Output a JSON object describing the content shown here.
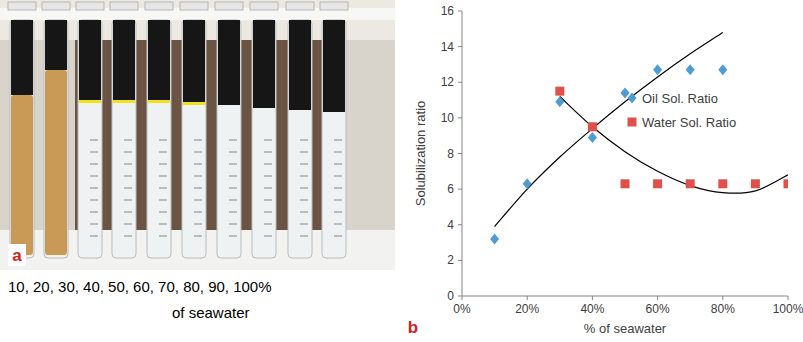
{
  "photo_panel": {
    "label": "a",
    "caption": [
      "10, 20, 30, 40, 50, 60, 70, 80, 90, 100%",
      "of seawater"
    ]
  },
  "chart_data": {
    "type": "scatter",
    "annotations": [
      "b"
    ],
    "x_label": "% of seawater",
    "y_label": "Solubilization ratio",
    "xlim": [
      0,
      100
    ],
    "xticks": [
      {
        "value": 0,
        "label": "0%"
      },
      {
        "value": 20,
        "label": "20%"
      },
      {
        "value": 40,
        "label": "40%"
      },
      {
        "value": 60,
        "label": "60%"
      },
      {
        "value": 80,
        "label": "80%"
      },
      {
        "value": 100,
        "label": "100%"
      }
    ],
    "ylim": [
      0,
      16
    ],
    "yticks": [
      0,
      2,
      4,
      6,
      8,
      10,
      12,
      14,
      16
    ],
    "grid": false,
    "legend": "right",
    "series": [
      {
        "name": "Oil Sol. Ratio",
        "color": "#4f9bd4",
        "marker": "diamond",
        "x": [
          10,
          20,
          30,
          40,
          50,
          60,
          70,
          80
        ],
        "values": [
          3.2,
          6.3,
          10.9,
          8.9,
          11.4,
          12.7,
          12.7,
          12.7
        ],
        "trend": {
          "x": [
            10,
            20,
            30,
            40,
            50,
            60,
            70,
            80
          ],
          "values": [
            3.9,
            6.0,
            7.8,
            9.4,
            10.9,
            12.3,
            13.6,
            14.8
          ]
        }
      },
      {
        "name": "Water Sol. Ratio",
        "color": "#e0504a",
        "marker": "square",
        "x": [
          30,
          40,
          50,
          60,
          70,
          80,
          90,
          100
        ],
        "values": [
          11.5,
          9.5,
          6.3,
          6.3,
          6.3,
          6.3,
          6.3,
          6.3
        ],
        "trend": {
          "x": [
            30,
            40,
            50,
            60,
            70,
            80,
            90,
            100
          ],
          "values": [
            11.2,
            9.5,
            8.1,
            7.0,
            6.2,
            5.8,
            5.9,
            6.8
          ]
        }
      }
    ]
  }
}
